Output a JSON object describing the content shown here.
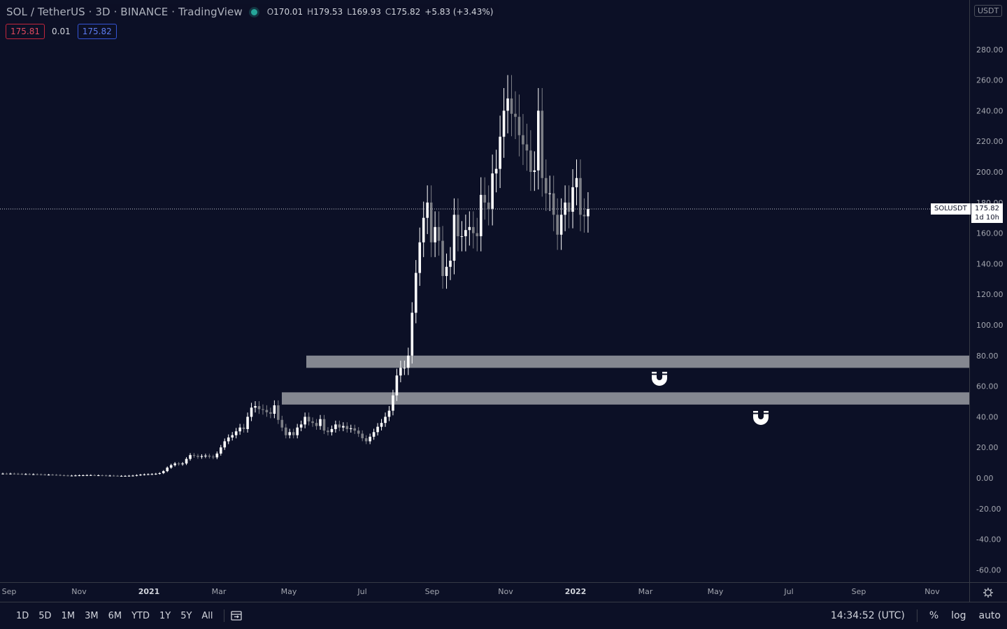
{
  "header": {
    "symbol": "SOL / TetherUS · 3D · BINANCE · TradingView",
    "open_label": "O",
    "open": "170.01",
    "high_label": "H",
    "high": "179.53",
    "low_label": "L",
    "low": "169.93",
    "close_label": "C",
    "close": "175.82",
    "change": "+5.83 (+3.43%)"
  },
  "trade": {
    "sell": "175.81",
    "spread": "0.01",
    "buy": "175.82"
  },
  "currency_label": "USDT",
  "last_price": {
    "symbol": "SOLUSDT",
    "value": "175.82",
    "countdown": "1d 10h"
  },
  "chart_data": {
    "type": "candlestick",
    "y_axis": {
      "min": -60,
      "max": 300,
      "ticks": [
        -60,
        -40,
        -20,
        0,
        20,
        40,
        60,
        80,
        100,
        120,
        140,
        160,
        180,
        200,
        220,
        240,
        260,
        280
      ],
      "tick_labels": [
        "-60.00",
        "-40.00",
        "-20.00",
        "0.00",
        "20.00",
        "40.00",
        "60.00",
        "80.00",
        "100.00",
        "120.00",
        "140.00",
        "160.00",
        "180.00",
        "200.00",
        "220.00",
        "240.00",
        "260.00",
        "280.00"
      ]
    },
    "x_axis": {
      "labels": [
        "Sep",
        "Nov",
        "2021",
        "Mar",
        "May",
        "Jul",
        "Sep",
        "Nov",
        "2022",
        "Mar",
        "May",
        "Jul",
        "Sep",
        "Nov"
      ],
      "bold": [
        "2021",
        "2022"
      ]
    },
    "last_price": 175.82,
    "zones": [
      {
        "from": 72,
        "to": 80
      },
      {
        "from": 48,
        "to": 56
      }
    ],
    "close_series": [
      2.9,
      2.8,
      2.9,
      2.8,
      2.7,
      2.6,
      2.6,
      2.5,
      2.5,
      2.4,
      2.3,
      2.2,
      2.2,
      2.1,
      2.0,
      1.8,
      1.7,
      1.6,
      1.6,
      1.7,
      1.8,
      1.8,
      1.9,
      1.9,
      1.8,
      1.8,
      1.7,
      1.6,
      1.6,
      1.5,
      1.4,
      1.4,
      1.4,
      1.5,
      1.6,
      1.9,
      2.2,
      2.4,
      2.5,
      2.6,
      2.8,
      3.2,
      4.5,
      6.8,
      8.4,
      9.5,
      9.0,
      9.5,
      12.5,
      15.0,
      14.5,
      13.8,
      14.3,
      14.6,
      14.0,
      13.5,
      16.0,
      20.0,
      24.0,
      26.5,
      28.0,
      30.5,
      33.0,
      32.0,
      40.0,
      46.0,
      47.0,
      45.0,
      44.5,
      43.0,
      42.0,
      47.5,
      38.0,
      33.0,
      28.0,
      30.0,
      28.0,
      33.0,
      35.0,
      40.0,
      37.0,
      36.0,
      34.0,
      38.5,
      31.0,
      30.0,
      32.0,
      35.0,
      33.0,
      34.0,
      32.0,
      32.5,
      31.0,
      29.0,
      26.0,
      24.0,
      27.0,
      30.0,
      33.5,
      36.0,
      40.0,
      44.0,
      54.0,
      67.0,
      72.0,
      72.0,
      80.0,
      108.0,
      134.0,
      154.0,
      170.0,
      180.0,
      154.0,
      164.0,
      155.0,
      132.0,
      138.0,
      142.0,
      172.0,
      158.0,
      158.0,
      162.0,
      164.0,
      160.0,
      158.0,
      185.0,
      180.0,
      176.0,
      199.0,
      202.0,
      223.0,
      240.0,
      248.0,
      238.0,
      236.0,
      224.0,
      218.0,
      214.0,
      200.0,
      201.0,
      240.0,
      196.0,
      186.0,
      186.0,
      172.0,
      159.0,
      172.0,
      180.0,
      174.0,
      190.0,
      196.0,
      172.0,
      171.0,
      175.8
    ]
  },
  "bottom": {
    "timeframes": [
      "1D",
      "5D",
      "1M",
      "3M",
      "6M",
      "YTD",
      "1Y",
      "5Y",
      "All"
    ],
    "time": "14:34:52 (UTC)",
    "percent": "%",
    "log": "log",
    "auto": "auto"
  }
}
